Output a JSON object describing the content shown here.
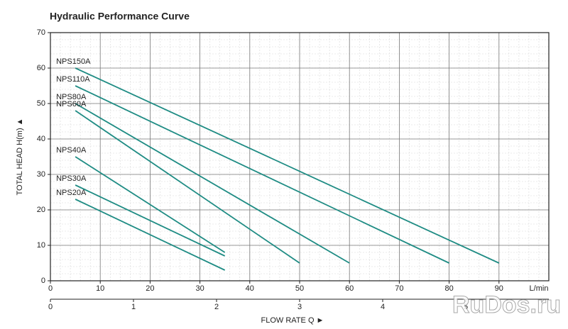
{
  "chart_data": {
    "type": "line",
    "title": "Hydraulic Performance Curve",
    "y_label": "TOTAL HEAD H(m) ▲",
    "x_label": "FLOW RATE Q ►",
    "x_unit": "L/min",
    "xlim": [
      0,
      100
    ],
    "xticks": [
      0,
      10,
      20,
      30,
      40,
      50,
      60,
      70,
      80,
      90
    ],
    "ylim": [
      0,
      70
    ],
    "yticks": [
      0,
      10,
      20,
      30,
      40,
      50,
      60,
      70
    ],
    "x2lim": [
      0,
      6
    ],
    "x2ticks": [
      0,
      1,
      2,
      3,
      4,
      5
    ],
    "grid": true,
    "series": [
      {
        "name": "NPS150A",
        "color": "#1f8c84",
        "x": [
          5,
          90
        ],
        "values": [
          60,
          5
        ]
      },
      {
        "name": "NPS110A",
        "color": "#1f8c84",
        "x": [
          5,
          80
        ],
        "values": [
          55,
          5
        ]
      },
      {
        "name": "NPS80A",
        "color": "#1f8c84",
        "x": [
          5,
          60
        ],
        "values": [
          50,
          5
        ]
      },
      {
        "name": "NPS60A",
        "color": "#1f8c84",
        "x": [
          5,
          50
        ],
        "values": [
          48,
          5
        ]
      },
      {
        "name": "NPS40A",
        "color": "#1f8c84",
        "x": [
          5,
          35
        ],
        "values": [
          35,
          8
        ]
      },
      {
        "name": "NPS30A",
        "color": "#1f8c84",
        "x": [
          5,
          35
        ],
        "values": [
          27,
          7
        ]
      },
      {
        "name": "NPS20A",
        "color": "#1f8c84",
        "x": [
          5,
          35
        ],
        "values": [
          23,
          3
        ]
      }
    ],
    "watermark": "RuDos.ru"
  }
}
